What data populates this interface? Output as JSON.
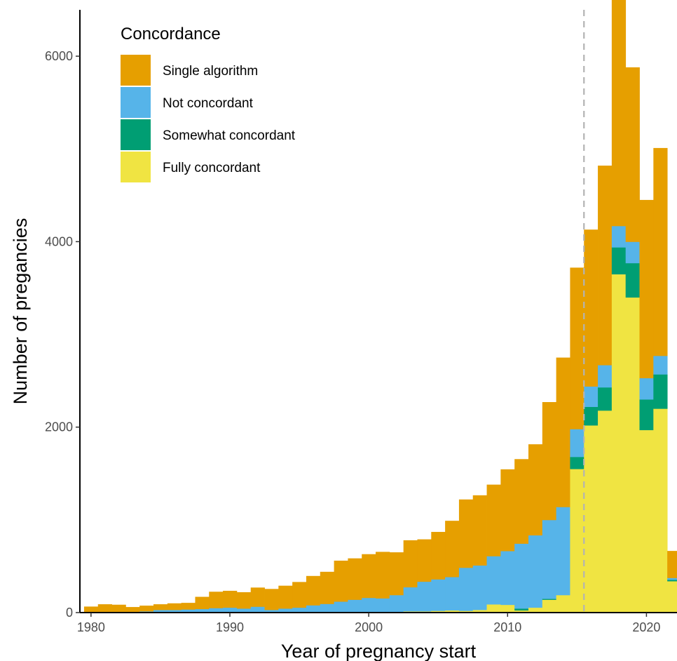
{
  "chart_data": {
    "type": "bar",
    "stacked": true,
    "title": "",
    "xlabel": "Year of pregnancy start",
    "ylabel": "Number of pregancies",
    "xlim": [
      1979.2,
      2022.2
    ],
    "ylim": [
      0,
      6500
    ],
    "x_ticks": [
      1980,
      1990,
      2000,
      2010,
      2020
    ],
    "y_ticks": [
      0,
      2000,
      4000,
      6000
    ],
    "grid": false,
    "legend": {
      "title": "Concordance",
      "position": "top-left",
      "entries": [
        "Single algorithm",
        "Not concordant",
        "Somewhat concordant",
        "Fully concordant"
      ]
    },
    "reference_line": {
      "x": 2015.5,
      "style": "dashed",
      "color": "#b3b3b3"
    },
    "colors": {
      "Single algorithm": "#E69F00",
      "Not concordant": "#56B4E9",
      "Somewhat concordant": "#009E73",
      "Fully concordant": "#F0E442"
    },
    "x": [
      1980,
      1981,
      1982,
      1983,
      1984,
      1985,
      1986,
      1987,
      1988,
      1989,
      1990,
      1991,
      1992,
      1993,
      1994,
      1995,
      1996,
      1997,
      1998,
      1999,
      2000,
      2001,
      2002,
      2003,
      2004,
      2005,
      2006,
      2007,
      2008,
      2009,
      2010,
      2011,
      2012,
      2013,
      2014,
      2015,
      2016,
      2017,
      2018,
      2019,
      2020,
      2021,
      2022
    ],
    "series": [
      {
        "name": "Fully concordant",
        "values": [
          0,
          0,
          0,
          0,
          0,
          0,
          0,
          0,
          0,
          0,
          0,
          0,
          0,
          0,
          0,
          0,
          0,
          0,
          10,
          10,
          10,
          10,
          10,
          15,
          15,
          20,
          25,
          20,
          30,
          90,
          85,
          25,
          55,
          140,
          190,
          1550,
          2020,
          2180,
          3650,
          3400,
          1970,
          2200,
          340
        ]
      },
      {
        "name": "Somewhat concordant",
        "values": [
          0,
          0,
          0,
          0,
          0,
          0,
          0,
          0,
          0,
          0,
          0,
          0,
          0,
          0,
          0,
          0,
          0,
          0,
          0,
          0,
          0,
          0,
          0,
          0,
          0,
          0,
          0,
          0,
          0,
          0,
          0,
          20,
          0,
          10,
          0,
          130,
          200,
          250,
          290,
          370,
          330,
          370,
          15
        ]
      },
      {
        "name": "Not concordant",
        "values": [
          0,
          0,
          0,
          0,
          15,
          30,
          30,
          35,
          40,
          50,
          55,
          45,
          65,
          30,
          45,
          55,
          80,
          95,
          110,
          130,
          150,
          145,
          180,
          260,
          320,
          340,
          360,
          465,
          480,
          520,
          580,
          700,
          780,
          850,
          950,
          300,
          220,
          240,
          230,
          230,
          230,
          200,
          20
        ]
      },
      {
        "name": "Single algorithm",
        "values": [
          65,
          90,
          85,
          60,
          60,
          60,
          70,
          70,
          130,
          175,
          180,
          175,
          205,
          225,
          245,
          275,
          315,
          345,
          440,
          445,
          470,
          500,
          460,
          505,
          455,
          510,
          605,
          735,
          755,
          770,
          880,
          910,
          980,
          1270,
          1610,
          1740,
          1690,
          2150,
          2850,
          1880,
          1920,
          2240,
          290
        ]
      }
    ]
  }
}
